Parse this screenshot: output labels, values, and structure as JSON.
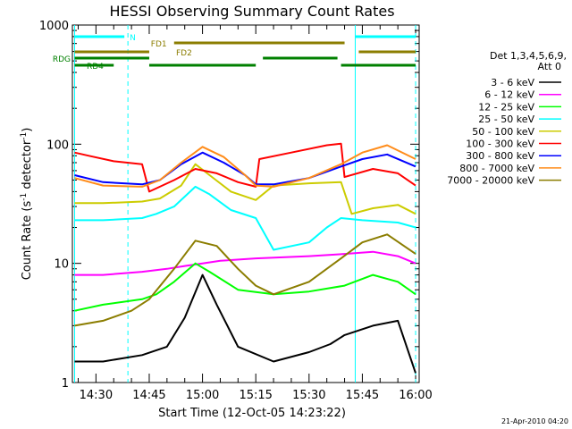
{
  "chart_data": {
    "type": "line",
    "title": "HESSI Observing Summary Count Rates",
    "xlabel": "Start Time (12-Oct-05 14:23:22)",
    "ylabel_main": "Count Rate (s",
    "ylabel_sup": "-1",
    "ylabel_mid": " detector",
    "ylabel_end": ")",
    "yscale": "log",
    "ylim": [
      1,
      1000
    ],
    "xlim": [
      "14:23:22",
      "16:01:00"
    ],
    "x_ticks": [
      "14:30",
      "14:45",
      "15:00",
      "15:15",
      "15:30",
      "15:45",
      "16:00"
    ],
    "y_ticks": [
      "1",
      "10",
      "100",
      "1000"
    ],
    "timestamp": "21-Apr-2010 04:20",
    "legend": {
      "header": "Det 1,3,4,5,6,9,",
      "subheader": "Att 0",
      "placement": "right"
    },
    "series": [
      {
        "name": "3 - 6 keV",
        "color": "#000000",
        "values": [
          [
            "14:24",
            1.5
          ],
          [
            "14:32",
            1.5
          ],
          [
            "14:43",
            1.7
          ],
          [
            "14:50",
            2.0
          ],
          [
            "14:55",
            3.5
          ],
          [
            "15:00",
            8.0
          ],
          [
            "15:04",
            4.5
          ],
          [
            "15:10",
            2.0
          ],
          [
            "15:20",
            1.5
          ],
          [
            "15:30",
            1.8
          ],
          [
            "15:36",
            2.1
          ],
          [
            "15:40",
            2.5
          ],
          [
            "15:48",
            3.0
          ],
          [
            "15:55",
            3.3
          ],
          [
            "16:00",
            1.2
          ]
        ]
      },
      {
        "name": "6 - 12 keV",
        "color": "#ff00ff",
        "values": [
          [
            "14:24",
            8.0
          ],
          [
            "14:32",
            8.0
          ],
          [
            "14:43",
            8.5
          ],
          [
            "14:50",
            9.0
          ],
          [
            "14:55",
            9.5
          ],
          [
            "15:00",
            10.0
          ],
          [
            "15:05",
            10.5
          ],
          [
            "15:15",
            11.0
          ],
          [
            "15:30",
            11.5
          ],
          [
            "15:40",
            12.0
          ],
          [
            "15:48",
            12.5
          ],
          [
            "15:55",
            11.5
          ],
          [
            "16:00",
            10.0
          ]
        ]
      },
      {
        "name": "12 - 25 keV",
        "color": "#00ff00",
        "values": [
          [
            "14:24",
            4.0
          ],
          [
            "14:32",
            4.5
          ],
          [
            "14:43",
            5.0
          ],
          [
            "14:47",
            5.5
          ],
          [
            "14:52",
            7.0
          ],
          [
            "14:58",
            10.0
          ],
          [
            "15:02",
            8.5
          ],
          [
            "15:10",
            6.0
          ],
          [
            "15:20",
            5.5
          ],
          [
            "15:30",
            5.8
          ],
          [
            "15:40",
            6.5
          ],
          [
            "15:48",
            8.0
          ],
          [
            "15:55",
            7.0
          ],
          [
            "16:00",
            5.5
          ]
        ]
      },
      {
        "name": "25 - 50 keV",
        "color": "#00ffff",
        "values": [
          [
            "14:24",
            23
          ],
          [
            "14:32",
            23
          ],
          [
            "14:43",
            24
          ],
          [
            "14:47",
            26
          ],
          [
            "14:52",
            30
          ],
          [
            "14:58",
            44
          ],
          [
            "15:02",
            38
          ],
          [
            "15:08",
            28
          ],
          [
            "15:15",
            24
          ],
          [
            "15:20",
            13
          ],
          [
            "15:30",
            15
          ],
          [
            "15:35",
            20
          ],
          [
            "15:39",
            24
          ],
          [
            "15:45",
            23
          ],
          [
            "15:55",
            22
          ],
          [
            "16:00",
            20
          ]
        ]
      },
      {
        "name": "50 - 100 keV",
        "color": "#cccc00",
        "values": [
          [
            "14:24",
            32
          ],
          [
            "14:32",
            32
          ],
          [
            "14:43",
            33
          ],
          [
            "14:48",
            35
          ],
          [
            "14:54",
            45
          ],
          [
            "14:58",
            68
          ],
          [
            "15:02",
            55
          ],
          [
            "15:08",
            40
          ],
          [
            "15:15",
            34
          ],
          [
            "15:20",
            45
          ],
          [
            "15:30",
            47
          ],
          [
            "15:39",
            48
          ],
          [
            "15:42",
            26
          ],
          [
            "15:48",
            29
          ],
          [
            "15:55",
            31
          ],
          [
            "16:00",
            26
          ]
        ]
      },
      {
        "name": "100 - 300 keV",
        "color": "#ff0000",
        "values": [
          [
            "14:24",
            85
          ],
          [
            "14:28",
            80
          ],
          [
            "14:35",
            72
          ],
          [
            "14:43",
            68
          ],
          [
            "14:45",
            40
          ],
          [
            "14:52",
            50
          ],
          [
            "14:58",
            62
          ],
          [
            "15:04",
            57
          ],
          [
            "15:10",
            48
          ],
          [
            "15:15",
            44
          ],
          [
            "15:16",
            75
          ],
          [
            "15:25",
            85
          ],
          [
            "15:35",
            98
          ],
          [
            "15:39",
            101
          ],
          [
            "15:40",
            53
          ],
          [
            "15:48",
            62
          ],
          [
            "15:55",
            57
          ],
          [
            "16:00",
            45
          ]
        ]
      },
      {
        "name": "300 - 800 keV",
        "color": "#0000ff",
        "values": [
          [
            "14:24",
            55
          ],
          [
            "14:32",
            48
          ],
          [
            "14:43",
            46
          ],
          [
            "14:48",
            50
          ],
          [
            "14:54",
            68
          ],
          [
            "15:00",
            85
          ],
          [
            "15:06",
            70
          ],
          [
            "15:12",
            55
          ],
          [
            "15:15",
            46
          ],
          [
            "15:20",
            46
          ],
          [
            "15:30",
            52
          ],
          [
            "15:39",
            65
          ],
          [
            "15:45",
            75
          ],
          [
            "15:52",
            82
          ],
          [
            "16:00",
            65
          ]
        ]
      },
      {
        "name": "800 - 7000 keV",
        "color": "#ff8c1a",
        "values": [
          [
            "14:24",
            52
          ],
          [
            "14:32",
            45
          ],
          [
            "14:43",
            44
          ],
          [
            "14:48",
            50
          ],
          [
            "14:54",
            70
          ],
          [
            "15:00",
            95
          ],
          [
            "15:06",
            78
          ],
          [
            "15:12",
            55
          ],
          [
            "15:15",
            45
          ],
          [
            "15:20",
            44
          ],
          [
            "15:30",
            52
          ],
          [
            "15:39",
            68
          ],
          [
            "15:45",
            85
          ],
          [
            "15:52",
            98
          ],
          [
            "16:00",
            75
          ]
        ]
      },
      {
        "name": "7000 - 20000 keV",
        "color": "#8b7d00",
        "values": [
          [
            "14:24",
            3.0
          ],
          [
            "14:32",
            3.3
          ],
          [
            "14:40",
            4.0
          ],
          [
            "14:45",
            5.0
          ],
          [
            "14:52",
            9.0
          ],
          [
            "14:58",
            15.5
          ],
          [
            "15:04",
            14.0
          ],
          [
            "15:10",
            9.0
          ],
          [
            "15:15",
            6.5
          ],
          [
            "15:20",
            5.5
          ],
          [
            "15:30",
            7.0
          ],
          [
            "15:39",
            11.0
          ],
          [
            "15:45",
            15.0
          ],
          [
            "15:52",
            17.5
          ],
          [
            "16:00",
            12.0
          ]
        ]
      }
    ],
    "vertical_lines": [
      {
        "time": "14:24",
        "style": "solid",
        "color": "#00ffff"
      },
      {
        "time": "14:39",
        "style": "dashed",
        "color": "#00ffff"
      },
      {
        "time": "15:43",
        "style": "solid",
        "color": "#00ffff"
      },
      {
        "time": "16:00",
        "style": "dashed",
        "color": "#00ffff"
      }
    ],
    "status_bars": [
      {
        "label": "N",
        "color": "#00ffff",
        "level": 0,
        "segments": [
          [
            "14:24",
            "14:38"
          ],
          [
            "15:43",
            "16:00"
          ]
        ]
      },
      {
        "label": "FD1",
        "color": "#8b7d00",
        "level": 1,
        "segments": [
          [
            "14:52",
            "15:40"
          ]
        ]
      },
      {
        "label": "FD2",
        "color": "#8b7d00",
        "level": 2,
        "segments": [
          [
            "14:24",
            "14:45"
          ],
          [
            "15:44",
            "16:00"
          ]
        ]
      },
      {
        "label": "RDG",
        "color": "#008000",
        "level": 3,
        "segments": [
          [
            "14:24",
            "14:45"
          ],
          [
            "15:17",
            "15:38"
          ]
        ]
      },
      {
        "label": "RD4",
        "color": "#008000",
        "level": 4,
        "segments": [
          [
            "14:24",
            "14:35"
          ],
          [
            "14:45",
            "15:15"
          ],
          [
            "15:39",
            "16:00"
          ]
        ]
      }
    ]
  }
}
